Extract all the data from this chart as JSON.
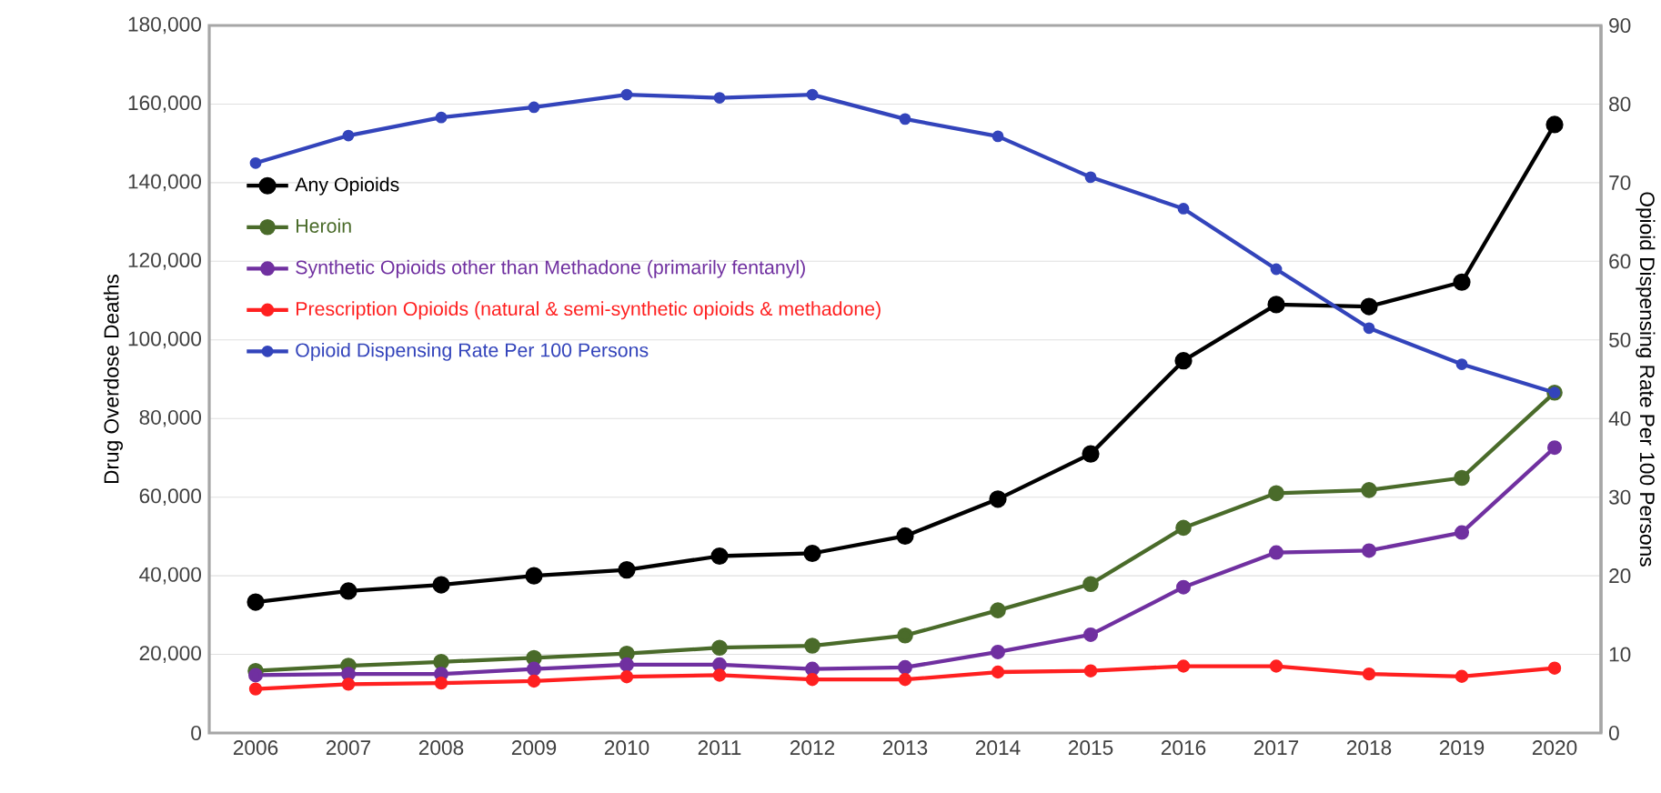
{
  "chart_data": {
    "type": "line",
    "categories": [
      "2006",
      "2007",
      "2008",
      "2009",
      "2010",
      "2011",
      "2012",
      "2013",
      "2014",
      "2015",
      "2016",
      "2017",
      "2018",
      "2019",
      "2020"
    ],
    "series": [
      {
        "name": "Any Opioids",
        "color": "#000000",
        "values": [
          33300,
          36100,
          37700,
          40000,
          41500,
          45000,
          45700,
          50100,
          59500,
          71000,
          94700,
          109000,
          108500,
          114700,
          154800
        ]
      },
      {
        "name": "Heroin",
        "color": "#4a6b2a",
        "values": [
          15800,
          17100,
          18100,
          19100,
          20200,
          21700,
          22200,
          24800,
          31200,
          37900,
          52200,
          61000,
          61800,
          64900,
          86600
        ]
      },
      {
        "name": "Synthetic Opioids other than Methadone (primarily fentanyl)",
        "color": "#7030a0",
        "values": [
          14700,
          15000,
          15000,
          16300,
          17400,
          17400,
          16300,
          16700,
          20600,
          25000,
          37100,
          45900,
          46400,
          51000,
          72600
        ]
      },
      {
        "name": "Prescription Opioids (natural & semi-synthetic opioids & methadone)",
        "color": "#ff2020",
        "values": [
          11200,
          12400,
          12700,
          13200,
          14300,
          14700,
          13600,
          13600,
          15500,
          15800,
          17000,
          17000,
          15000,
          14400,
          16500
        ]
      },
      {
        "name": "Opioid Dispensing Rate Per 100 Persons",
        "color": "#3344bb",
        "axis": "y2",
        "values": [
          72.5,
          76.0,
          78.3,
          79.6,
          81.2,
          80.8,
          81.2,
          78.1,
          75.9,
          70.7,
          66.7,
          59.0,
          51.5,
          46.9,
          43.3
        ]
      }
    ],
    "ylabel": "Drug Overdose Deaths",
    "y2label": "Opioid Dispensing Rate Per 100 Persons",
    "ylim": [
      0,
      180000
    ],
    "yticks": [
      0,
      {
        "value": 20000,
        "label": "20,000"
      },
      {
        "value": 40000,
        "label": "40,000"
      },
      {
        "value": 60000,
        "label": "60,000"
      },
      {
        "value": 80000,
        "label": "80,000"
      },
      {
        "value": 100000,
        "label": "100,000"
      },
      {
        "value": 120000,
        "label": "120,000"
      },
      {
        "value": 140000,
        "label": "140,000"
      },
      {
        "value": 160000,
        "label": "160,000"
      },
      {
        "value": 180000,
        "label": "180,000"
      }
    ],
    "y2lim": [
      0,
      90
    ],
    "y2ticks": [
      0,
      10,
      20,
      30,
      40,
      50,
      60,
      70,
      80,
      90
    ],
    "grid": "y",
    "legend": "top left",
    "marker": "circle",
    "line_style": "solid"
  }
}
